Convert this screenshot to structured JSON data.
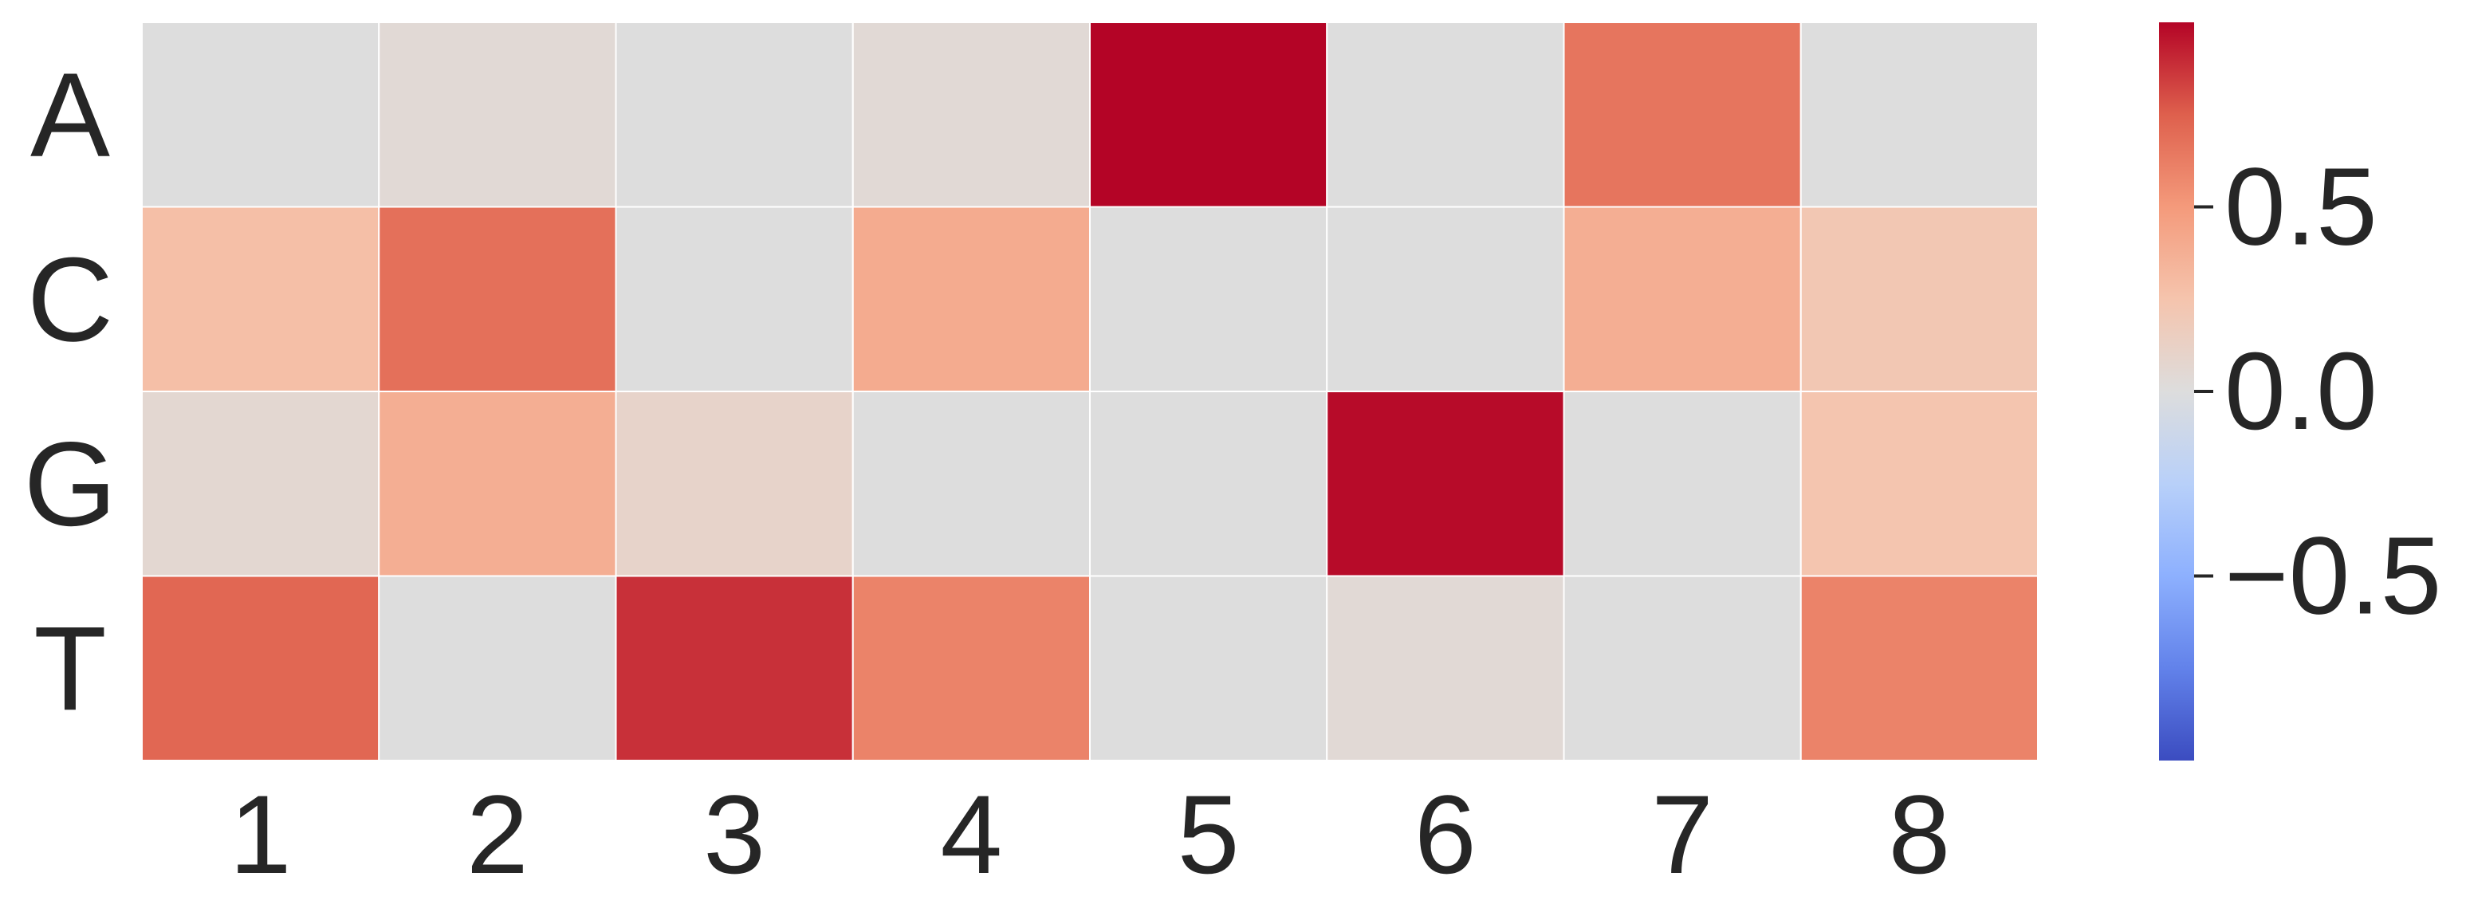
{
  "chart_data": {
    "type": "heatmap",
    "title": "",
    "xlabel": "",
    "ylabel": "",
    "rows": [
      "A",
      "C",
      "G",
      "T"
    ],
    "columns": [
      "1",
      "2",
      "3",
      "4",
      "5",
      "6",
      "7",
      "8"
    ],
    "values": [
      [
        0.0,
        0.04,
        0.0,
        0.04,
        1.0,
        0.0,
        0.66,
        0.0
      ],
      [
        0.28,
        0.68,
        0.0,
        0.4,
        0.0,
        0.0,
        0.38,
        0.22
      ],
      [
        0.06,
        0.38,
        0.1,
        0.0,
        0.0,
        0.98,
        0.0,
        0.24
      ],
      [
        0.72,
        0.0,
        0.88,
        0.6,
        0.0,
        0.04,
        0.0,
        0.6
      ]
    ],
    "colormap": "coolwarm",
    "vmin": -1.0,
    "vmax": 1.0,
    "colorbar": {
      "ticks": [
        0.5,
        0.0,
        -0.5
      ],
      "tick_labels": [
        "0.5",
        "0.0",
        "−0.5"
      ],
      "position": "right"
    },
    "grid": false
  }
}
